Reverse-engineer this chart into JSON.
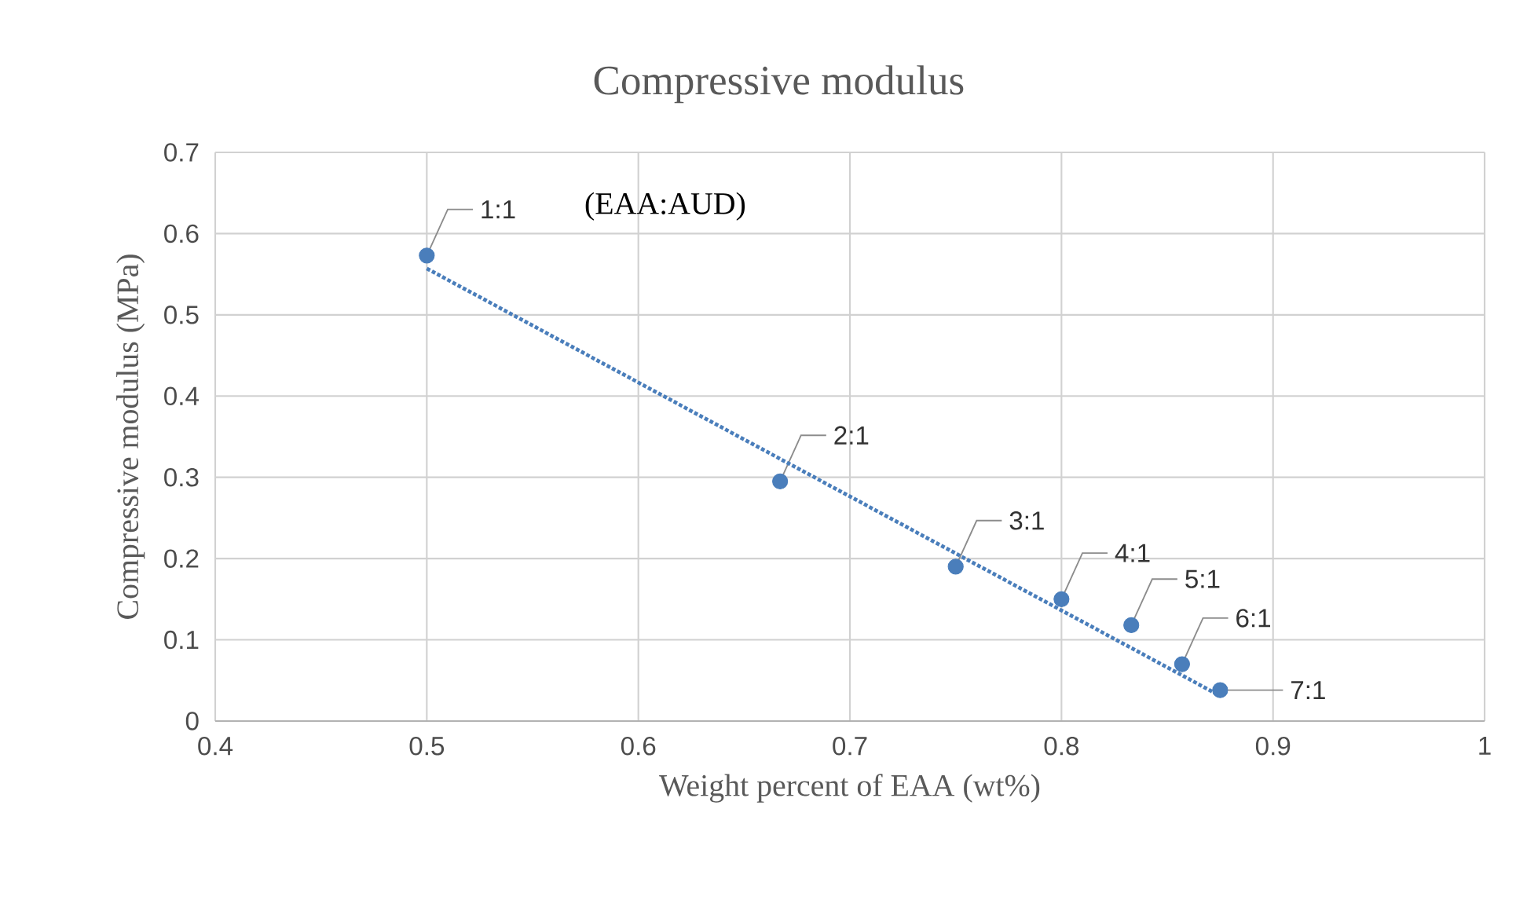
{
  "chart_data": {
    "type": "scatter",
    "title": "Compressive modulus",
    "xlabel": "Weight percent of EAA (wt%)",
    "ylabel": "Compressive modulus (MPa)",
    "annotations": [
      "(EAA:AUD)"
    ],
    "series": [
      {
        "color": "#4a7ebb",
        "x": [
          0.5,
          0.667,
          0.75,
          0.8,
          0.833,
          0.857,
          0.875
        ],
        "values": [
          0.573,
          0.295,
          0.19,
          0.15,
          0.118,
          0.07,
          0.038
        ],
        "value_labels": [
          "1:1",
          "2:1",
          "3:1",
          "4:1",
          "5:1",
          "6:1",
          "7:1"
        ],
        "marker": "circle"
      },
      {
        "type": "line",
        "color": "#4a7ebb",
        "x": [
          0.5,
          0.875
        ],
        "values": [
          0.557,
          0.031
        ],
        "line_style": "dotted",
        "marker": "none"
      }
    ],
    "xlim": [
      0.4,
      1
    ],
    "ylim": [
      0,
      0.7
    ],
    "xticks": [
      0.4,
      0.5,
      0.6,
      0.7,
      0.8,
      0.9,
      1
    ],
    "yticks": [
      0,
      0.1,
      0.2,
      0.3,
      0.4,
      0.5,
      0.6,
      0.7
    ],
    "grid": true
  }
}
